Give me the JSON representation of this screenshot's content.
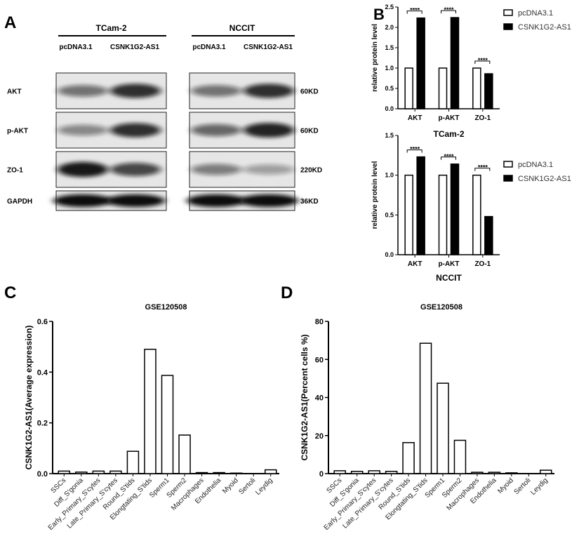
{
  "panel_labels": {
    "a": "A",
    "b": "B",
    "c": "C",
    "d": "D"
  },
  "blot": {
    "groups": [
      "TCam-2",
      "NCCIT"
    ],
    "lanes": [
      "pcDNA3.1",
      "CSNK1G2-AS1"
    ],
    "rows": [
      {
        "protein": "AKT",
        "size": "60KD"
      },
      {
        "protein": "p-AKT",
        "size": "60KD"
      },
      {
        "protein": "ZO-1",
        "size": "220KD"
      },
      {
        "protein": "GAPDH",
        "size": "36KD"
      }
    ]
  },
  "chart_data": [
    {
      "type": "bar",
      "panel": "B",
      "xlabel": "TCam-2",
      "ylabel": "relative protein level",
      "categories": [
        "AKT",
        "p-AKT",
        "ZO-1"
      ],
      "series": [
        {
          "name": "pcDNA3.1",
          "values": [
            1.0,
            1.0,
            1.0
          ],
          "color": "#ffffff"
        },
        {
          "name": "CSNK1G2-AS1",
          "values": [
            2.23,
            2.24,
            0.86
          ],
          "color": "#000000"
        }
      ],
      "significance": [
        "****",
        "****",
        "****"
      ],
      "ylim": [
        0,
        2.5
      ],
      "yticks": [
        "0.0",
        "0.5",
        "1.0",
        "1.5",
        "2.0",
        "2.5"
      ],
      "legend": "right"
    },
    {
      "type": "bar",
      "panel": "B",
      "xlabel": "NCCIT",
      "ylabel": "relative protein level",
      "categories": [
        "AKT",
        "p-AKT",
        "ZO-1"
      ],
      "series": [
        {
          "name": "pcDNA3.1",
          "values": [
            1.0,
            1.0,
            1.0
          ],
          "color": "#ffffff"
        },
        {
          "name": "CSNK1G2-AS1",
          "values": [
            1.23,
            1.14,
            0.48
          ],
          "color": "#000000"
        }
      ],
      "significance": [
        "****",
        "****",
        "****"
      ],
      "ylim": [
        0,
        1.5
      ],
      "yticks": [
        "0.0",
        "0.5",
        "1.0",
        "1.5"
      ],
      "legend": "right"
    },
    {
      "type": "bar",
      "panel": "C",
      "title": "GSE120508",
      "ylabel": "CSNK1G2-AS1(Average expression)",
      "categories": [
        "SSCs",
        "Diff_S'gonia",
        "Early_Primary_S'cytes",
        "Late_Primary_S'cytes",
        "Round_S'tids",
        "Elongtating_S'tids",
        "Sperm1",
        "Sperm2",
        "Macrophages",
        "Endothelia",
        "Myoid",
        "Sertoli",
        "Leydig"
      ],
      "values": [
        0.01,
        0.006,
        0.01,
        0.01,
        0.088,
        0.49,
        0.387,
        0.152,
        0.004,
        0.004,
        0.002,
        0.0,
        0.015
      ],
      "ylim": [
        0,
        0.6
      ],
      "yticks": [
        "0.0",
        "0.2",
        "0.4",
        "0.6"
      ]
    },
    {
      "type": "bar",
      "panel": "D",
      "title": "GSE120508",
      "ylabel": "CSNK1G2-AS1(Percent cells %)",
      "categories": [
        "SSCs",
        "Diff_S'gonia",
        "Early_Primary_S'cytes",
        "Late_Primary_S'cytes",
        "Round_S'tids",
        "Elongtating_S'tids",
        "Sperm1",
        "Sperm2",
        "Macrophages",
        "Endothelia",
        "Myoid",
        "Sertoli",
        "Leydig"
      ],
      "values": [
        1.5,
        1.2,
        1.5,
        1.2,
        16.3,
        68.5,
        47.5,
        17.5,
        0.7,
        0.7,
        0.4,
        0.0,
        1.8
      ],
      "ylim": [
        0,
        80
      ],
      "yticks": [
        "0",
        "20",
        "40",
        "60",
        "80"
      ]
    }
  ]
}
